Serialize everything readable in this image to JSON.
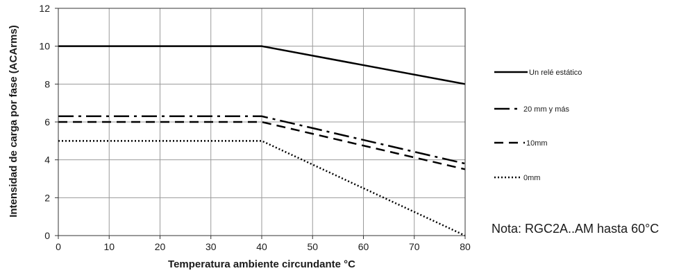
{
  "chart_data": {
    "type": "line",
    "xlabel": "Temperatura ambiente circundante °C",
    "ylabel": "Intensidad de carga por fase (ACArms)",
    "xlim": [
      0,
      80
    ],
    "ylim": [
      0,
      12
    ],
    "xticks": [
      0,
      10,
      20,
      30,
      40,
      50,
      60,
      70,
      80
    ],
    "yticks": [
      0,
      2,
      4,
      6,
      8,
      10,
      12
    ],
    "grid": true,
    "legend_position": "right",
    "series": [
      {
        "name": "Un relé estático",
        "style": "solid",
        "color": "#000000",
        "x": [
          0,
          40,
          80
        ],
        "y": [
          10,
          10,
          8
        ]
      },
      {
        "name": "20 mm y más",
        "style": "dashdot",
        "color": "#000000",
        "x": [
          0,
          40,
          80
        ],
        "y": [
          6.3,
          6.3,
          3.8
        ]
      },
      {
        "name": "10mm",
        "style": "dashed",
        "color": "#000000",
        "x": [
          0,
          40,
          80
        ],
        "y": [
          6,
          6,
          3.5
        ]
      },
      {
        "name": "0mm",
        "style": "dotted",
        "color": "#000000",
        "x": [
          0,
          40,
          80
        ],
        "y": [
          5,
          5,
          0
        ]
      }
    ],
    "annotation": "Nota: RGC2A..AM hasta 60°C"
  }
}
